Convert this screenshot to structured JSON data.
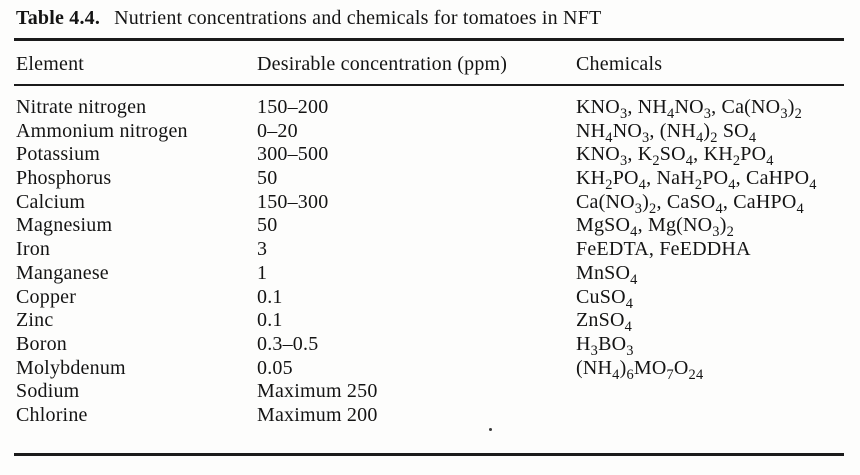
{
  "title": {
    "label": "Table 4.4.",
    "caption": "Nutrient concentrations and chemicals for tomatoes in NFT"
  },
  "table": {
    "columns": [
      "Element",
      "Desirable concentration (ppm)",
      "Chemicals"
    ],
    "rows": [
      {
        "element": "Nitrate nitrogen",
        "concentration": "150–200",
        "chemicals": "KNO_3, NH_4NO_3, Ca(NO_3)_2"
      },
      {
        "element": "Ammonium nitrogen",
        "concentration": "0–20",
        "chemicals": "NH_4NO_3, (NH_4)_2 SO_4"
      },
      {
        "element": "Potassium",
        "concentration": "300–500",
        "chemicals": "KNO_3, K_2SO_4, KH_2PO_4"
      },
      {
        "element": "Phosphorus",
        "concentration": "50",
        "chemicals": "KH_2PO_4, NaH_2PO_4, CaHPO_4"
      },
      {
        "element": "Calcium",
        "concentration": "150–300",
        "chemicals": "Ca(NO_3)_2, CaSO_4, CaHPO_4"
      },
      {
        "element": "Magnesium",
        "concentration": "50",
        "chemicals": "MgSO_4, Mg(NO_3)_2"
      },
      {
        "element": "Iron",
        "concentration": "3",
        "chemicals": "FeEDTA, FeEDDHA"
      },
      {
        "element": "Manganese",
        "concentration": "1",
        "chemicals": "MnSO_4"
      },
      {
        "element": "Copper",
        "concentration": "0.1",
        "chemicals": "CuSO_4"
      },
      {
        "element": "Zinc",
        "concentration": "0.1",
        "chemicals": "ZnSO_4"
      },
      {
        "element": "Boron",
        "concentration": "0.3–0.5",
        "chemicals": "H_3BO_3"
      },
      {
        "element": "Molybdenum",
        "concentration": "0.05",
        "chemicals": "(NH_4)_6MO_7O_24"
      },
      {
        "element": "Sodium",
        "concentration": "Maximum 250",
        "chemicals": ""
      },
      {
        "element": "Chlorine",
        "concentration": "Maximum 200",
        "chemicals": ""
      }
    ]
  }
}
